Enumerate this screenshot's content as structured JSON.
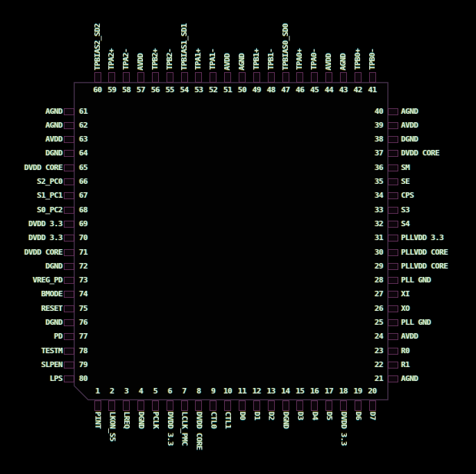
{
  "diagram": {
    "type": "ic-pinout",
    "package_pin_count": 80,
    "colors": {
      "background": "#000000",
      "text": "#d6e9d8",
      "pin_stub_outline": "#63305a",
      "chip_body_outline": "#44304a",
      "chip_body_fill": "#020202"
    },
    "pins": {
      "top": [
        {
          "num": "60",
          "label": "TPBIAS2_SD2"
        },
        {
          "num": "59",
          "label": "TPA2+"
        },
        {
          "num": "58",
          "label": "TPA2-"
        },
        {
          "num": "57",
          "label": "AVDD"
        },
        {
          "num": "56",
          "label": "TPB2+"
        },
        {
          "num": "55",
          "label": "TPB2-"
        },
        {
          "num": "54",
          "label": "TPBIAS1_SD1"
        },
        {
          "num": "53",
          "label": "TPA1+"
        },
        {
          "num": "52",
          "label": "TPA1-"
        },
        {
          "num": "51",
          "label": "AVDD"
        },
        {
          "num": "50",
          "label": "AGND"
        },
        {
          "num": "49",
          "label": "TPB1+"
        },
        {
          "num": "48",
          "label": "TPB1-"
        },
        {
          "num": "47",
          "label": "TPBIAS0_SD0"
        },
        {
          "num": "46",
          "label": "TPA0+"
        },
        {
          "num": "45",
          "label": "TPA0-"
        },
        {
          "num": "44",
          "label": "AVDD"
        },
        {
          "num": "43",
          "label": "AGND"
        },
        {
          "num": "42",
          "label": "TPB0+"
        },
        {
          "num": "41",
          "label": "TPB0-"
        }
      ],
      "left": [
        {
          "num": "61",
          "label": "AGND"
        },
        {
          "num": "62",
          "label": "AGND"
        },
        {
          "num": "63",
          "label": "AVDD"
        },
        {
          "num": "64",
          "label": "DGND"
        },
        {
          "num": "65",
          "label": "DVDD CORE"
        },
        {
          "num": "66",
          "label": "S2_PC0"
        },
        {
          "num": "67",
          "label": "S1_PC1"
        },
        {
          "num": "68",
          "label": "S0_PC2"
        },
        {
          "num": "69",
          "label": "DVDD 3.3"
        },
        {
          "num": "70",
          "label": "DVDD 3.3"
        },
        {
          "num": "71",
          "label": "DVDD CORE"
        },
        {
          "num": "72",
          "label": "DGND"
        },
        {
          "num": "73",
          "label": "VREG_PD"
        },
        {
          "num": "74",
          "label": "BMODE"
        },
        {
          "num": "75",
          "label": "RESET"
        },
        {
          "num": "76",
          "label": "DGND"
        },
        {
          "num": "77",
          "label": "PD"
        },
        {
          "num": "78",
          "label": "TESTM"
        },
        {
          "num": "79",
          "label": "SLPEN"
        },
        {
          "num": "80",
          "label": "LPS"
        }
      ],
      "right": [
        {
          "num": "40",
          "label": "AGND"
        },
        {
          "num": "39",
          "label": "AVDD"
        },
        {
          "num": "38",
          "label": "DGND"
        },
        {
          "num": "37",
          "label": "DVDD CORE"
        },
        {
          "num": "36",
          "label": "SM"
        },
        {
          "num": "35",
          "label": "SE"
        },
        {
          "num": "34",
          "label": "CPS"
        },
        {
          "num": "33",
          "label": "S3"
        },
        {
          "num": "32",
          "label": "S4"
        },
        {
          "num": "31",
          "label": "PLLVDD 3.3"
        },
        {
          "num": "30",
          "label": "PLLVDD CORE"
        },
        {
          "num": "29",
          "label": "PLLVDD CORE"
        },
        {
          "num": "28",
          "label": "PLL GND"
        },
        {
          "num": "27",
          "label": "XI"
        },
        {
          "num": "26",
          "label": "XO"
        },
        {
          "num": "25",
          "label": "PLL GND"
        },
        {
          "num": "24",
          "label": "AVDD"
        },
        {
          "num": "23",
          "label": "R0"
        },
        {
          "num": "22",
          "label": "R1"
        },
        {
          "num": "21",
          "label": "AGND"
        }
      ],
      "bottom": [
        {
          "num": "1",
          "label": "PINT"
        },
        {
          "num": "2",
          "label": "LKON_S5"
        },
        {
          "num": "3",
          "label": "LREQ"
        },
        {
          "num": "4",
          "label": "DGND"
        },
        {
          "num": "5",
          "label": "PCLK"
        },
        {
          "num": "6",
          "label": "DVDD 3.3"
        },
        {
          "num": "7",
          "label": "LCLK_PMC"
        },
        {
          "num": "8",
          "label": "DVDD CORE"
        },
        {
          "num": "9",
          "label": "CTL0"
        },
        {
          "num": "10",
          "label": "CTL1"
        },
        {
          "num": "11",
          "label": "D0"
        },
        {
          "num": "12",
          "label": "D1"
        },
        {
          "num": "13",
          "label": "D2"
        },
        {
          "num": "14",
          "label": "DGND"
        },
        {
          "num": "15",
          "label": "D3"
        },
        {
          "num": "16",
          "label": "D4"
        },
        {
          "num": "17",
          "label": "D5"
        },
        {
          "num": "18",
          "label": "DVDD 3.3"
        },
        {
          "num": "19",
          "label": "D6"
        },
        {
          "num": "20",
          "label": "D7"
        }
      ]
    }
  }
}
